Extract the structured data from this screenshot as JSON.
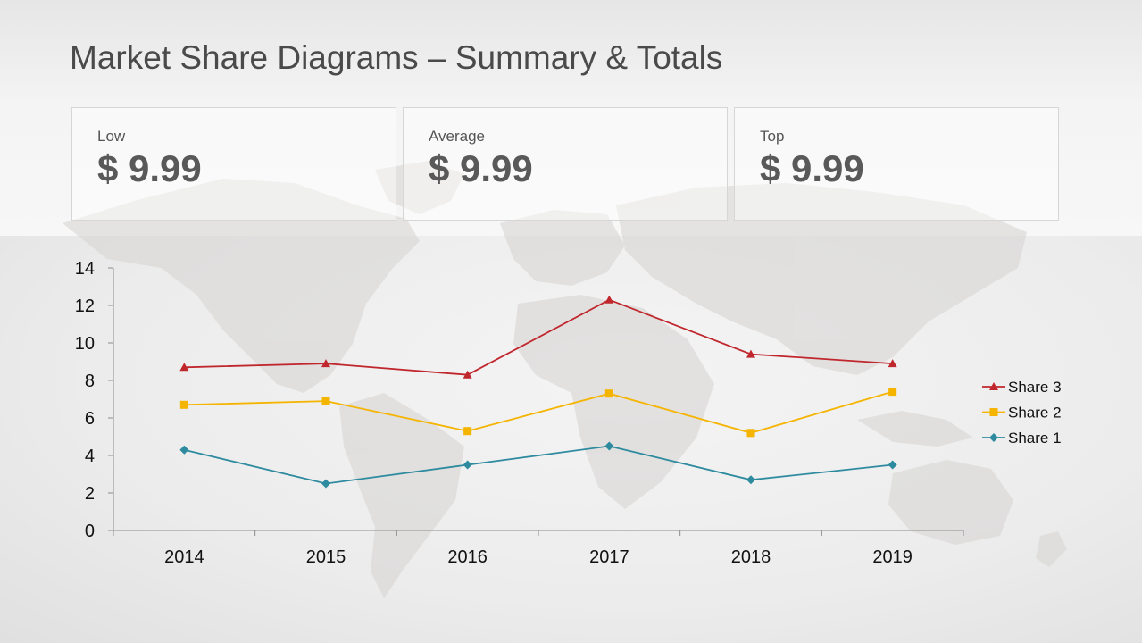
{
  "slide": {
    "title": "Market Share Diagrams – Summary & Totals"
  },
  "cards": [
    {
      "label": "Low",
      "value": "$ 9.99"
    },
    {
      "label": "Average",
      "value": "$ 9.99"
    },
    {
      "label": "Top",
      "value": "$ 9.99"
    }
  ],
  "chart_data": {
    "type": "line",
    "categories": [
      "2014",
      "2015",
      "2016",
      "2017",
      "2018",
      "2019"
    ],
    "ylim": [
      0,
      14
    ],
    "yticks": [
      0,
      2,
      4,
      6,
      8,
      10,
      12,
      14
    ],
    "legend_position": "right",
    "grid": false,
    "series": [
      {
        "name": "Share 3",
        "color": "#c0272d",
        "marker": "triangle",
        "values": [
          8.7,
          8.9,
          8.3,
          12.3,
          9.4,
          8.9
        ]
      },
      {
        "name": "Share 2",
        "color": "#f5b400",
        "marker": "square",
        "values": [
          6.7,
          6.9,
          5.3,
          7.3,
          5.2,
          7.4
        ]
      },
      {
        "name": "Share 1",
        "color": "#2e8b9f",
        "marker": "diamond",
        "values": [
          4.3,
          2.5,
          3.5,
          4.5,
          2.7,
          3.5
        ]
      }
    ]
  }
}
